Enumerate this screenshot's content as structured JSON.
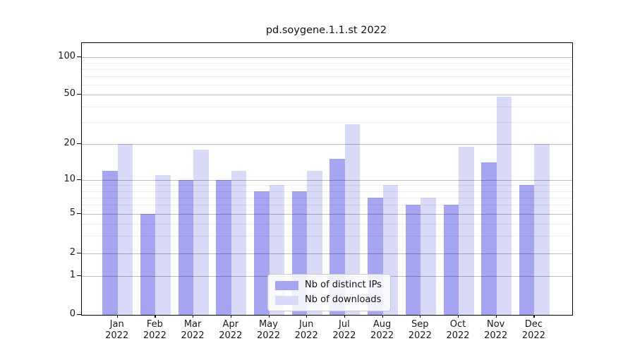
{
  "title": "pd.soygene.1.1.st 2022",
  "colors": {
    "ips_bar": "#a5a5f1",
    "downloads_bar": "#d9d9f8",
    "axis": "#000000",
    "grid_major": "rgba(0,0,0,0.26)",
    "grid_minor": "rgba(0,0,0,0.07)"
  },
  "legend": {
    "items": [
      {
        "label": "Nb of distinct IPs",
        "series": "ips"
      },
      {
        "label": "Nb of downloads",
        "series": "downloads"
      }
    ]
  },
  "y_axis": {
    "tick_values": [
      0,
      1,
      2,
      5,
      10,
      20,
      50,
      100
    ],
    "tick_labels": [
      "0",
      "1",
      "2",
      "5",
      "10",
      "20",
      "50",
      "100"
    ],
    "minor_values": [
      3,
      4,
      6,
      7,
      8,
      9,
      30,
      40,
      60,
      70,
      80,
      90
    ]
  },
  "x_axis": {
    "categories": [
      {
        "month": "Jan",
        "year": "2022"
      },
      {
        "month": "Feb",
        "year": "2022"
      },
      {
        "month": "Mar",
        "year": "2022"
      },
      {
        "month": "Apr",
        "year": "2022"
      },
      {
        "month": "May",
        "year": "2022"
      },
      {
        "month": "Jun",
        "year": "2022"
      },
      {
        "month": "Jul",
        "year": "2022"
      },
      {
        "month": "Aug",
        "year": "2022"
      },
      {
        "month": "Sep",
        "year": "2022"
      },
      {
        "month": "Oct",
        "year": "2022"
      },
      {
        "month": "Nov",
        "year": "2022"
      },
      {
        "month": "Dec",
        "year": "2022"
      }
    ]
  },
  "chart_data": {
    "type": "bar",
    "title": "pd.soygene.1.1.st 2022",
    "categories": [
      "Jan 2022",
      "Feb 2022",
      "Mar 2022",
      "Apr 2022",
      "May 2022",
      "Jun 2022",
      "Jul 2022",
      "Aug 2022",
      "Sep 2022",
      "Oct 2022",
      "Nov 2022",
      "Dec 2022"
    ],
    "series": [
      {
        "name": "Nb of distinct IPs",
        "color": "#a5a5f1",
        "values": [
          12,
          5,
          10,
          10,
          8,
          8,
          15,
          7,
          6,
          6,
          14,
          9
        ]
      },
      {
        "name": "Nb of downloads",
        "color": "#d9d9f8",
        "values": [
          20,
          11,
          18,
          12,
          9,
          12,
          29,
          9,
          7,
          19,
          48,
          20
        ]
      }
    ],
    "xlabel": "",
    "ylabel": "",
    "yscale": "log-like with 0 baseline",
    "yticks": [
      0,
      1,
      2,
      5,
      10,
      20,
      50,
      100
    ],
    "ylim": [
      0,
      130
    ],
    "grid": true,
    "legend_position": "lower center"
  }
}
